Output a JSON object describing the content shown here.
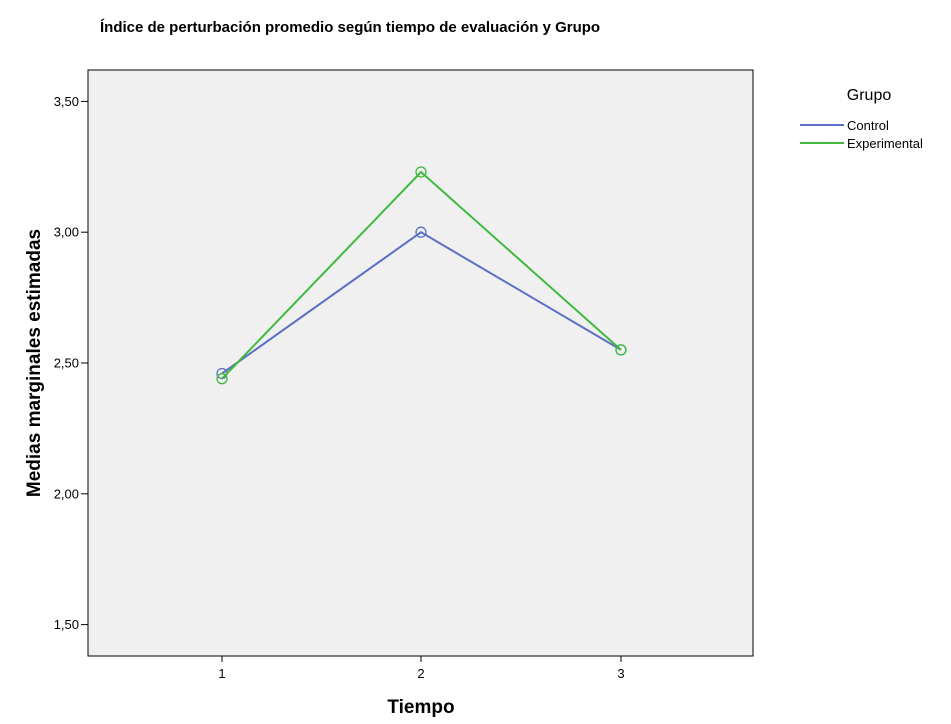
{
  "chart_data": {
    "type": "line",
    "title": "Índice de perturbación promedio según tiempo de evaluación y Grupo",
    "xlabel": "Tiempo",
    "ylabel": "Medias marginales estimadas",
    "categories": [
      "1",
      "2",
      "3"
    ],
    "ylim": [
      1.38,
      3.62
    ],
    "yticks": [
      {
        "value": 1.5,
        "label": "1,50"
      },
      {
        "value": 2.0,
        "label": "2,00"
      },
      {
        "value": 2.5,
        "label": "2,50"
      },
      {
        "value": 3.0,
        "label": "3,00"
      },
      {
        "value": 3.5,
        "label": "3,50"
      }
    ],
    "grid": false,
    "plot_background": "#f0f0f0",
    "legend": {
      "title": "Grupo",
      "placement": "right"
    },
    "series": [
      {
        "name": "Control",
        "color": "#5b6fc4",
        "values": [
          2.46,
          3.0,
          2.55
        ]
      },
      {
        "name": "Experimental",
        "color": "#3fba3f",
        "values": [
          2.44,
          3.23,
          2.55
        ]
      }
    ]
  }
}
